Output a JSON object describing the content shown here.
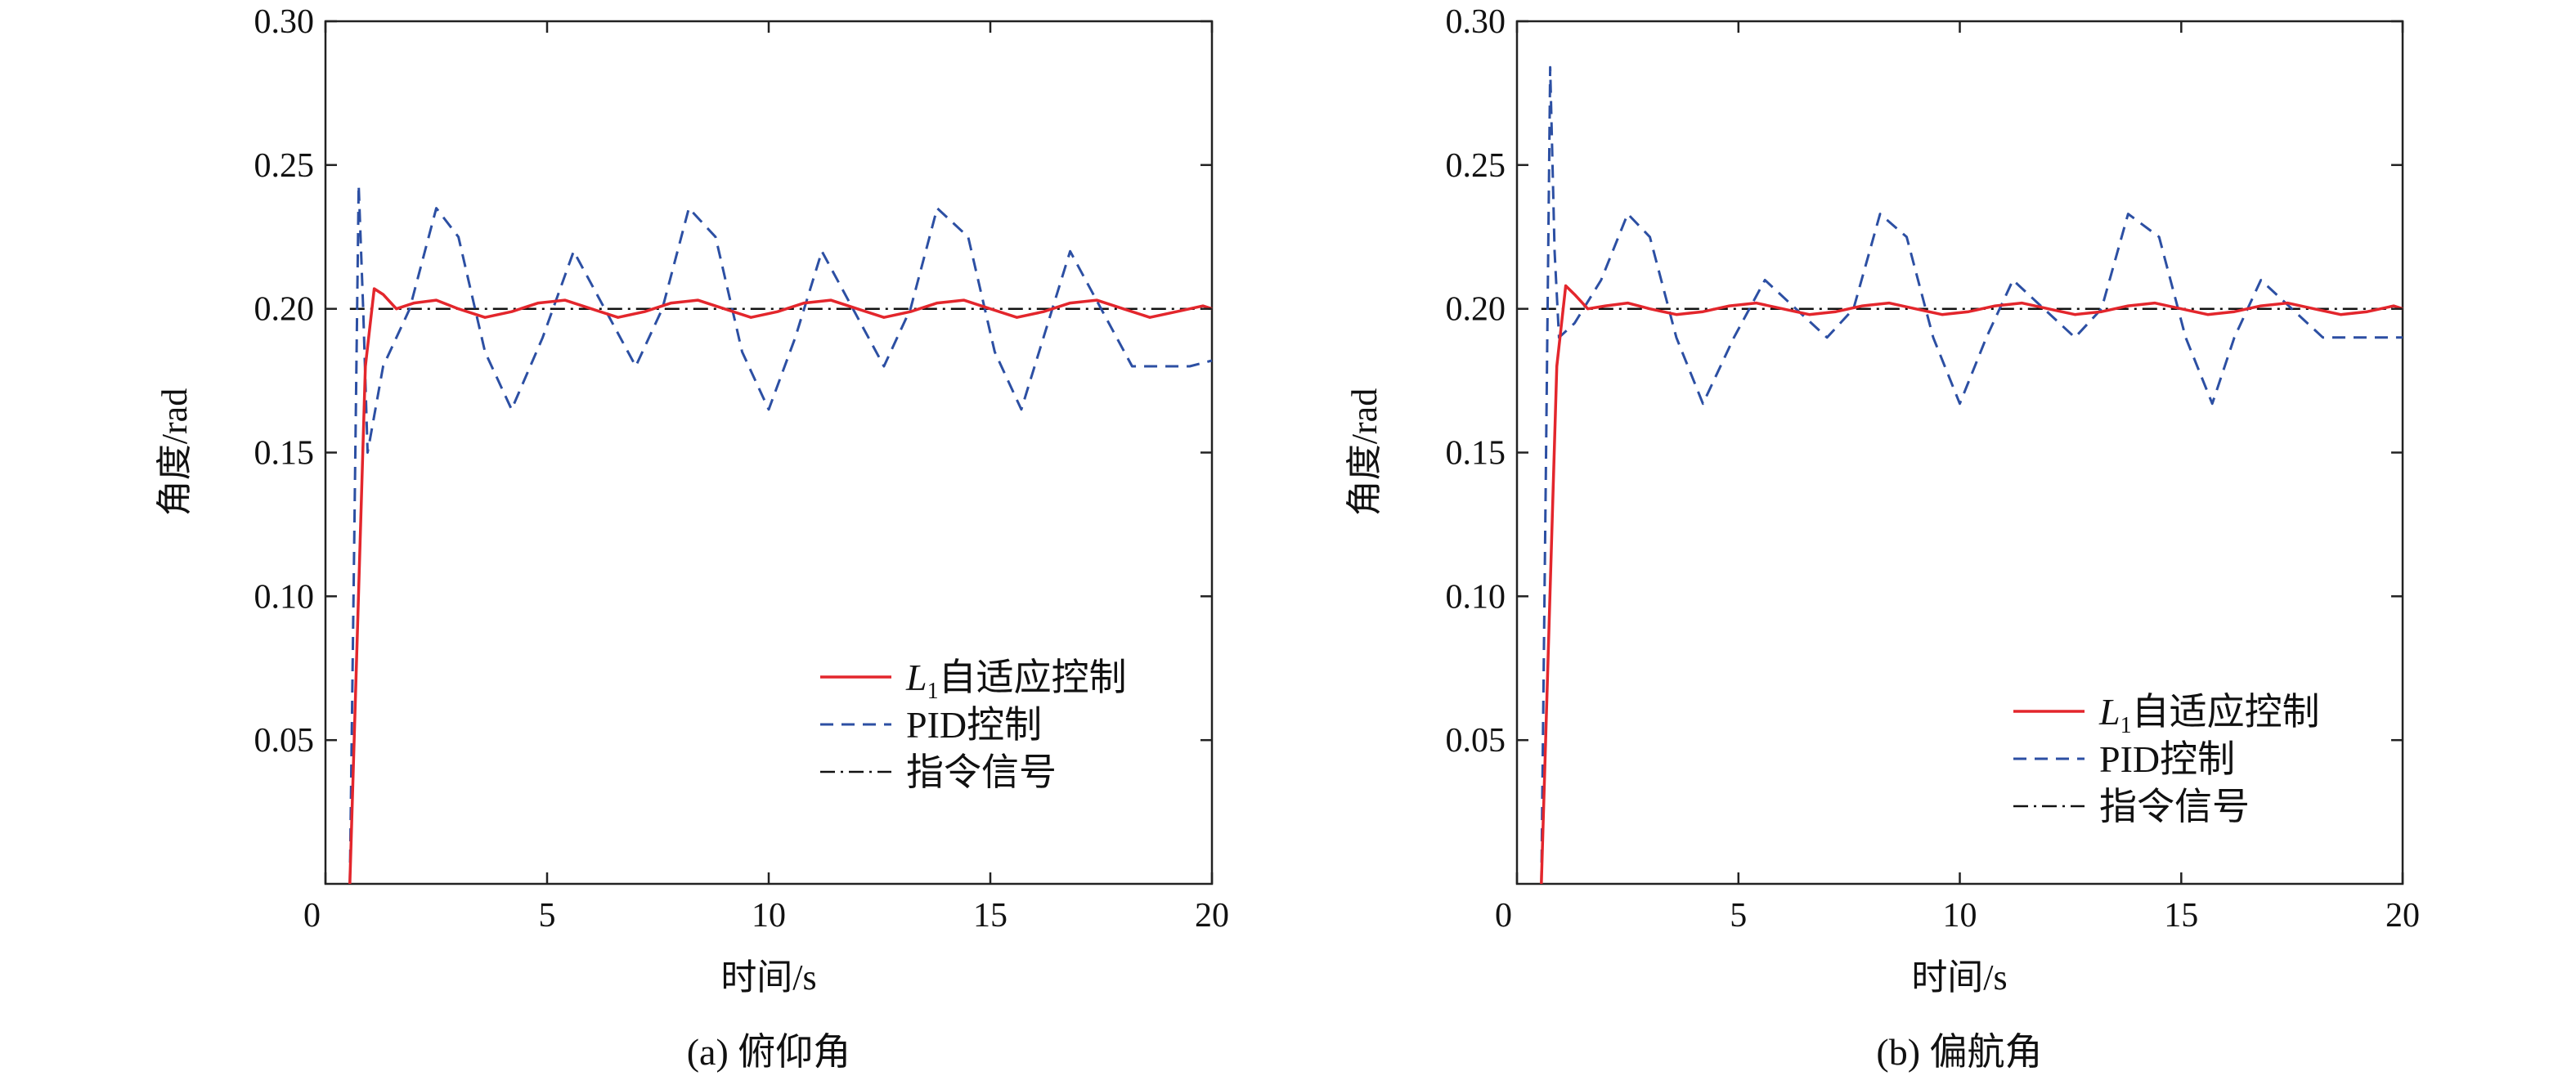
{
  "chart_data": [
    {
      "type": "line",
      "caption": "(a) 俯仰角",
      "xlabel": "时间/s",
      "ylabel": "角度/rad",
      "xlim": [
        0,
        20
      ],
      "ylim": [
        0,
        0.3
      ],
      "xticks": [
        "0",
        "5",
        "10",
        "15",
        "20"
      ],
      "yticks": [
        "0.05",
        "0.10",
        "0.15",
        "0.20",
        "0.25",
        "0.30"
      ],
      "legend_position": "lower-right",
      "series": [
        {
          "name": "L1自适应控制",
          "name_main": "L",
          "name_sub": "1",
          "name_rest": "自适应控制",
          "color": "#e3262c",
          "style": "solid",
          "x": [
            0.55,
            0.9,
            1.1,
            1.3,
            1.6,
            2.0,
            2.5,
            3.0,
            3.6,
            4.2,
            4.8,
            5.4,
            6.0,
            6.6,
            7.2,
            7.8,
            8.4,
            9.0,
            9.6,
            10.2,
            10.8,
            11.4,
            12.0,
            12.6,
            13.2,
            13.8,
            14.4,
            15.0,
            15.6,
            16.2,
            16.8,
            17.4,
            18.0,
            18.6,
            19.2,
            19.8,
            20.0
          ],
          "y": [
            0.0,
            0.18,
            0.207,
            0.205,
            0.2,
            0.202,
            0.203,
            0.2,
            0.197,
            0.199,
            0.202,
            0.203,
            0.2,
            0.197,
            0.199,
            0.202,
            0.203,
            0.2,
            0.197,
            0.199,
            0.202,
            0.203,
            0.2,
            0.197,
            0.199,
            0.202,
            0.203,
            0.2,
            0.197,
            0.199,
            0.202,
            0.203,
            0.2,
            0.197,
            0.199,
            0.201,
            0.2
          ]
        },
        {
          "name": "PID控制",
          "color": "#2c4fa3",
          "style": "dashed",
          "x": [
            0.55,
            0.65,
            0.75,
            0.85,
            0.95,
            1.3,
            1.9,
            2.5,
            3.0,
            3.6,
            4.2,
            4.9,
            5.6,
            6.3,
            7.0,
            7.6,
            8.2,
            8.8,
            9.4,
            10.0,
            10.6,
            11.2,
            11.9,
            12.6,
            13.2,
            13.8,
            14.5,
            15.1,
            15.7,
            16.2,
            16.8,
            17.5,
            18.2,
            18.9,
            19.5,
            20.0
          ],
          "y": [
            0.0,
            0.12,
            0.243,
            0.2,
            0.15,
            0.18,
            0.2,
            0.235,
            0.225,
            0.185,
            0.165,
            0.19,
            0.22,
            0.2,
            0.18,
            0.2,
            0.235,
            0.225,
            0.185,
            0.165,
            0.19,
            0.22,
            0.2,
            0.18,
            0.2,
            0.235,
            0.225,
            0.185,
            0.165,
            0.19,
            0.22,
            0.2,
            0.18,
            0.18,
            0.18,
            0.182
          ]
        },
        {
          "name": "指令信号",
          "color": "#111111",
          "style": "dashdot",
          "x": [
            0.55,
            20.0
          ],
          "y": [
            0.2,
            0.2
          ]
        }
      ]
    },
    {
      "type": "line",
      "caption": "(b) 偏航角",
      "xlabel": "时间/s",
      "ylabel": "角度/rad",
      "xlim": [
        0,
        20
      ],
      "ylim": [
        0,
        0.3
      ],
      "xticks": [
        "0",
        "5",
        "10",
        "15",
        "20"
      ],
      "yticks": [
        "0.05",
        "0.10",
        "0.15",
        "0.20",
        "0.25",
        "0.30"
      ],
      "legend_position": "lower-right",
      "series": [
        {
          "name": "L1自适应控制",
          "name_main": "L",
          "name_sub": "1",
          "name_rest": "自适应控制",
          "color": "#e3262c",
          "style": "solid",
          "x": [
            0.55,
            0.9,
            1.1,
            1.3,
            1.6,
            2.0,
            2.5,
            3.0,
            3.6,
            4.2,
            4.8,
            5.4,
            6.0,
            6.6,
            7.2,
            7.8,
            8.4,
            9.0,
            9.6,
            10.2,
            10.8,
            11.4,
            12.0,
            12.6,
            13.2,
            13.8,
            14.4,
            15.0,
            15.6,
            16.2,
            16.8,
            17.4,
            18.0,
            18.6,
            19.2,
            19.8,
            20.0
          ],
          "y": [
            0.0,
            0.18,
            0.208,
            0.205,
            0.2,
            0.201,
            0.202,
            0.2,
            0.198,
            0.199,
            0.201,
            0.202,
            0.2,
            0.198,
            0.199,
            0.201,
            0.202,
            0.2,
            0.198,
            0.199,
            0.201,
            0.202,
            0.2,
            0.198,
            0.199,
            0.201,
            0.202,
            0.2,
            0.198,
            0.199,
            0.201,
            0.202,
            0.2,
            0.198,
            0.199,
            0.201,
            0.2
          ]
        },
        {
          "name": "PID控制",
          "color": "#2c4fa3",
          "style": "dashed",
          "x": [
            0.55,
            0.65,
            0.75,
            0.85,
            0.95,
            1.3,
            1.9,
            2.5,
            3.0,
            3.6,
            4.2,
            4.9,
            5.6,
            6.3,
            7.0,
            7.6,
            8.2,
            8.8,
            9.4,
            10.0,
            10.6,
            11.2,
            11.9,
            12.6,
            13.2,
            13.8,
            14.5,
            15.1,
            15.7,
            16.2,
            16.8,
            17.5,
            18.2,
            18.9,
            19.5,
            20.0
          ],
          "y": [
            0.0,
            0.14,
            0.284,
            0.22,
            0.19,
            0.195,
            0.21,
            0.233,
            0.225,
            0.19,
            0.167,
            0.19,
            0.21,
            0.2,
            0.19,
            0.2,
            0.233,
            0.225,
            0.19,
            0.167,
            0.19,
            0.21,
            0.2,
            0.19,
            0.2,
            0.233,
            0.225,
            0.19,
            0.167,
            0.19,
            0.21,
            0.2,
            0.19,
            0.19,
            0.19,
            0.19
          ]
        },
        {
          "name": "指令信号",
          "color": "#111111",
          "style": "dashdot",
          "x": [
            0.55,
            20.0
          ],
          "y": [
            0.2,
            0.2
          ]
        }
      ]
    }
  ]
}
